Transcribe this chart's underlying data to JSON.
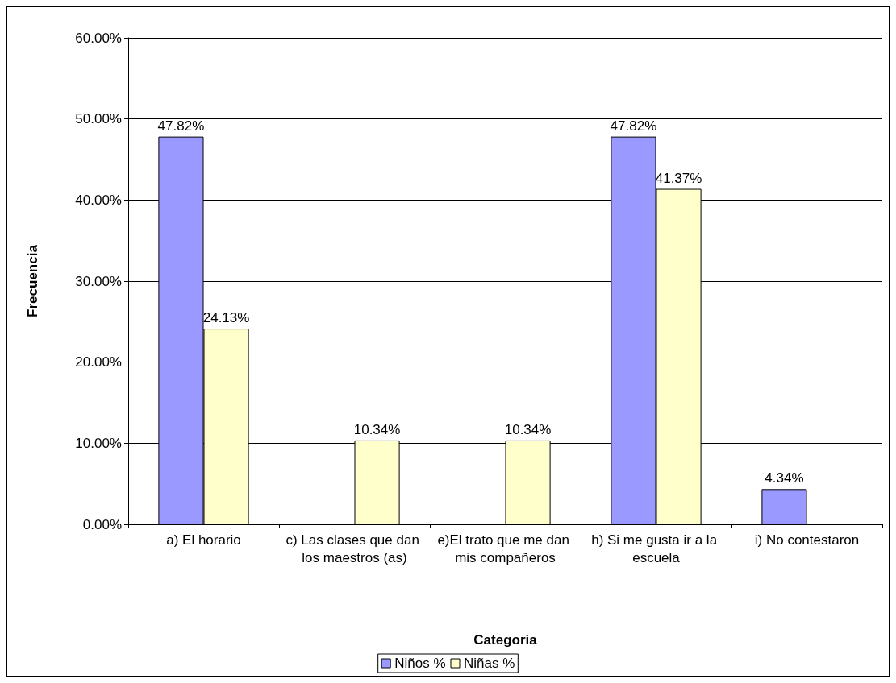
{
  "chart_data": {
    "type": "bar",
    "xlabel": "Categoria",
    "ylabel": "Frecuencia",
    "categories": [
      "a) El horario",
      "c) Las clases que dan los maestros (as)",
      "e)El trato que me dan mis compañeros",
      "h) Si me gusta ir a la escuela",
      "i) No contestaron"
    ],
    "series": [
      {
        "name": "Niños %",
        "color": "#9999ff",
        "values": [
          47.82,
          null,
          null,
          47.82,
          4.34
        ],
        "value_labels": [
          "47.82%",
          null,
          null,
          "47.82%",
          "4.34%"
        ]
      },
      {
        "name": "Niñas %",
        "color": "#ffffcc",
        "values": [
          24.13,
          10.34,
          10.34,
          41.37,
          null
        ],
        "value_labels": [
          "24.13%",
          "10.34%",
          "10.34%",
          "41.37%",
          null
        ]
      }
    ],
    "ylim": [
      0,
      60
    ],
    "yticks": [
      {
        "value": 0,
        "label": "0.00%"
      },
      {
        "value": 10,
        "label": "10.00%"
      },
      {
        "value": 20,
        "label": "20.00%"
      },
      {
        "value": 30,
        "label": "30.00%"
      },
      {
        "value": 40,
        "label": "40.00%"
      },
      {
        "value": 50,
        "label": "50.00%"
      },
      {
        "value": 60,
        "label": "60.00%"
      }
    ],
    "grid": "y",
    "legend": "bottom"
  }
}
